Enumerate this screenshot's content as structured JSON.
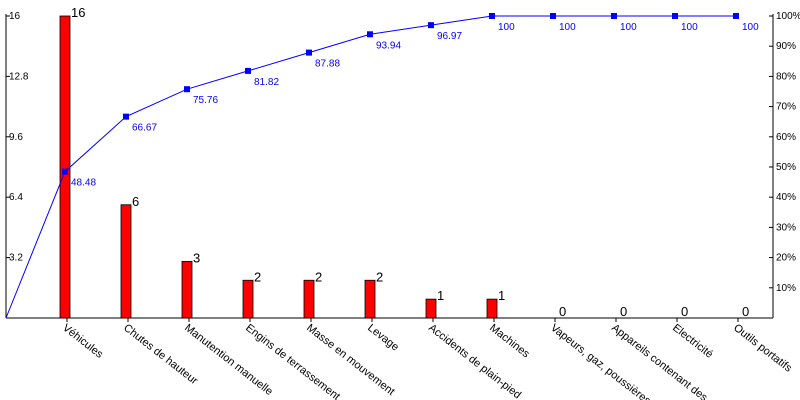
{
  "chart_data": {
    "type": "bar",
    "categories": [
      "Véhicules",
      "Chutes de hauteur",
      "Manutention manuelle",
      "Engins de terrassement",
      "Masse en mouvement",
      "Levage",
      "Accidents de plain-pied",
      "Machines",
      "Vapeurs, gaz, poussières",
      "Appareils contenant des",
      "Electricité",
      "Outils portatifs"
    ],
    "series": [
      {
        "type": "bar",
        "values": [
          16,
          6,
          3,
          2,
          2,
          2,
          1,
          1,
          0,
          0,
          0,
          0
        ],
        "value_labels": [
          "16",
          "6",
          "3",
          "2",
          "2",
          "2",
          "1",
          "1",
          "0",
          "0",
          "0",
          "0"
        ],
        "color": "#ff0000"
      },
      {
        "type": "line",
        "axis": "right",
        "values": [
          48.48,
          66.67,
          75.76,
          81.82,
          87.88,
          93.94,
          96.97,
          100,
          100,
          100,
          100,
          100
        ],
        "value_labels": [
          "48.48",
          "66.67",
          "75.76",
          "81.82",
          "87.88",
          "93.94",
          "96.97",
          "100",
          "100",
          "100",
          "100",
          "100"
        ],
        "color": "#0000ff"
      }
    ],
    "y_left": {
      "ylim": [
        0,
        16
      ],
      "ticks": [
        3.2,
        6.4,
        9.6,
        12.8,
        16
      ],
      "tick_labels": [
        "3.2",
        "6.4",
        "9.6",
        "12.8",
        "16"
      ]
    },
    "y_right": {
      "ylim": [
        0,
        100
      ],
      "ticks": [
        10,
        20,
        30,
        40,
        50,
        60,
        70,
        80,
        90,
        100
      ],
      "tick_labels": [
        "10%",
        "20%",
        "30%",
        "40%",
        "50%",
        "60%",
        "70%",
        "80%",
        "90%",
        "100%"
      ]
    },
    "grid": false,
    "legend": "none",
    "title": "",
    "xlabel": "",
    "ylabel": ""
  }
}
